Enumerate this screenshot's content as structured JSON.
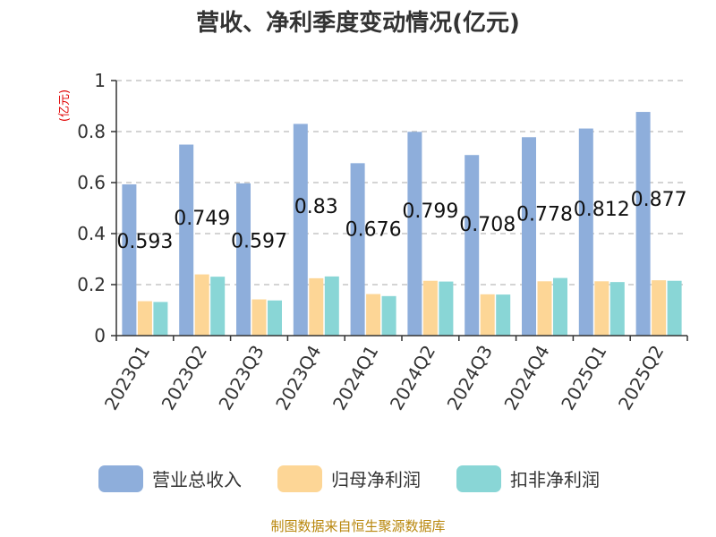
{
  "chart_data": {
    "type": "bar",
    "title": "营收、净利季度变动情况(亿元)",
    "unit_label": "(亿元)",
    "categories": [
      "2023Q1",
      "2023Q2",
      "2023Q3",
      "2023Q4",
      "2024Q1",
      "2024Q2",
      "2024Q3",
      "2024Q4",
      "2025Q1",
      "2025Q2"
    ],
    "series": [
      {
        "name": "营业总收入",
        "color": "#8eaedb",
        "values": [
          0.593,
          0.749,
          0.597,
          0.83,
          0.676,
          0.799,
          0.708,
          0.778,
          0.812,
          0.877
        ]
      },
      {
        "name": "归母净利润",
        "color": "#fdd696",
        "values": [
          0.135,
          0.24,
          0.142,
          0.225,
          0.163,
          0.215,
          0.162,
          0.213,
          0.213,
          0.217
        ]
      },
      {
        "name": "扣非净利润",
        "color": "#89d6d6",
        "values": [
          0.132,
          0.231,
          0.138,
          0.232,
          0.155,
          0.212,
          0.161,
          0.226,
          0.21,
          0.215
        ]
      }
    ],
    "data_labels": [
      "0.593",
      "0.749",
      "0.597",
      "0.83",
      "0.676",
      "0.799",
      "0.708",
      "0.778",
      "0.812",
      "0.877"
    ],
    "y_ticks": [
      "0",
      "0.2",
      "0.4",
      "0.6",
      "0.8",
      "1"
    ],
    "ylim": [
      0,
      1
    ],
    "grid": "horizontal dashed",
    "legend_position": "bottom",
    "source": "制图数据来自恒生聚源数据库"
  }
}
